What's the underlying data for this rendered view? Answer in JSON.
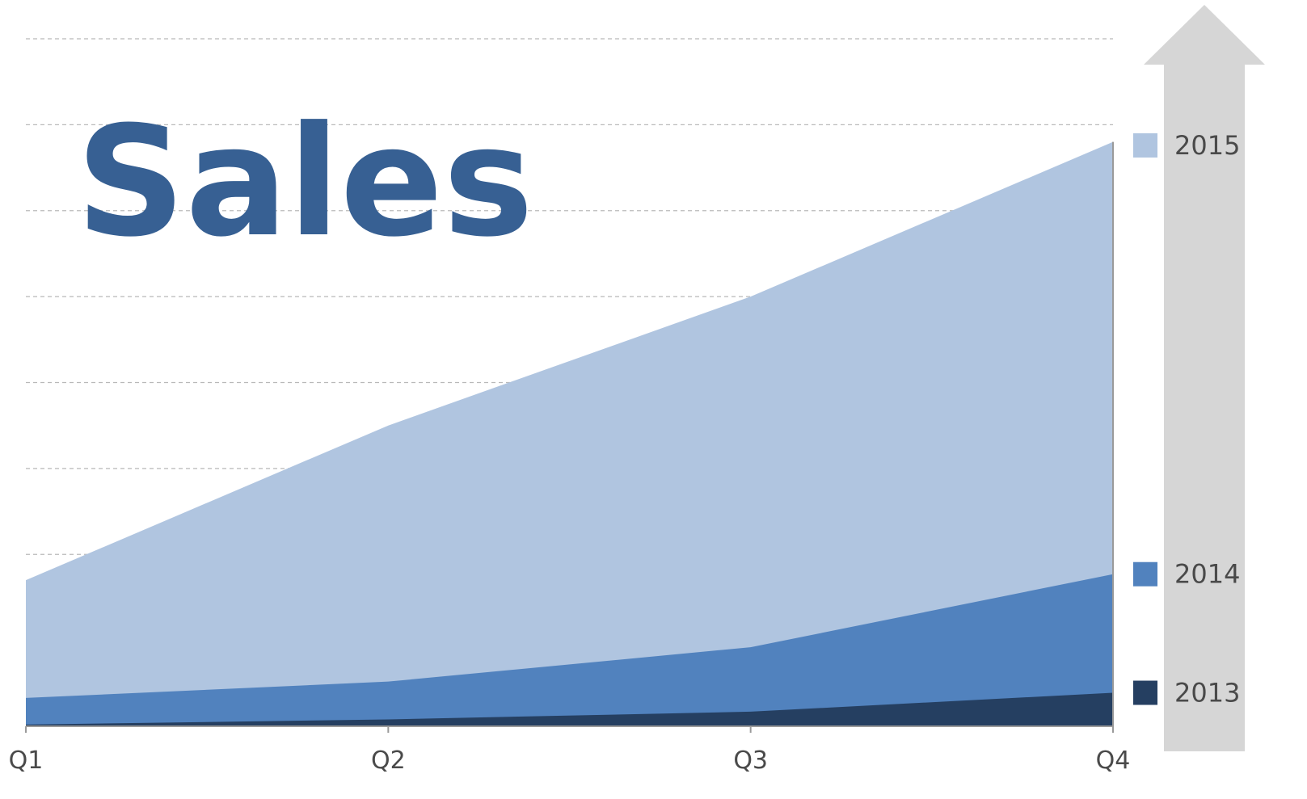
{
  "chart_data": {
    "type": "area",
    "stacked": false,
    "title": "Sales",
    "categories": [
      "Q1",
      "Q2",
      "Q3",
      "Q4"
    ],
    "ylim": [
      0,
      8
    ],
    "grid": true,
    "legend_position": "right",
    "series": [
      {
        "name": "2015",
        "color": "#b0c5e0",
        "values": [
          1.7,
          3.5,
          5.0,
          6.8
        ]
      },
      {
        "name": "2014",
        "color": "#5182be",
        "values": [
          0.33,
          0.52,
          0.92,
          1.77
        ]
      },
      {
        "name": "2013",
        "color": "#253f61",
        "values": [
          0.02,
          0.08,
          0.17,
          0.39
        ]
      }
    ],
    "arrow_color": "#d6d6d6",
    "title_color": "#376093"
  }
}
